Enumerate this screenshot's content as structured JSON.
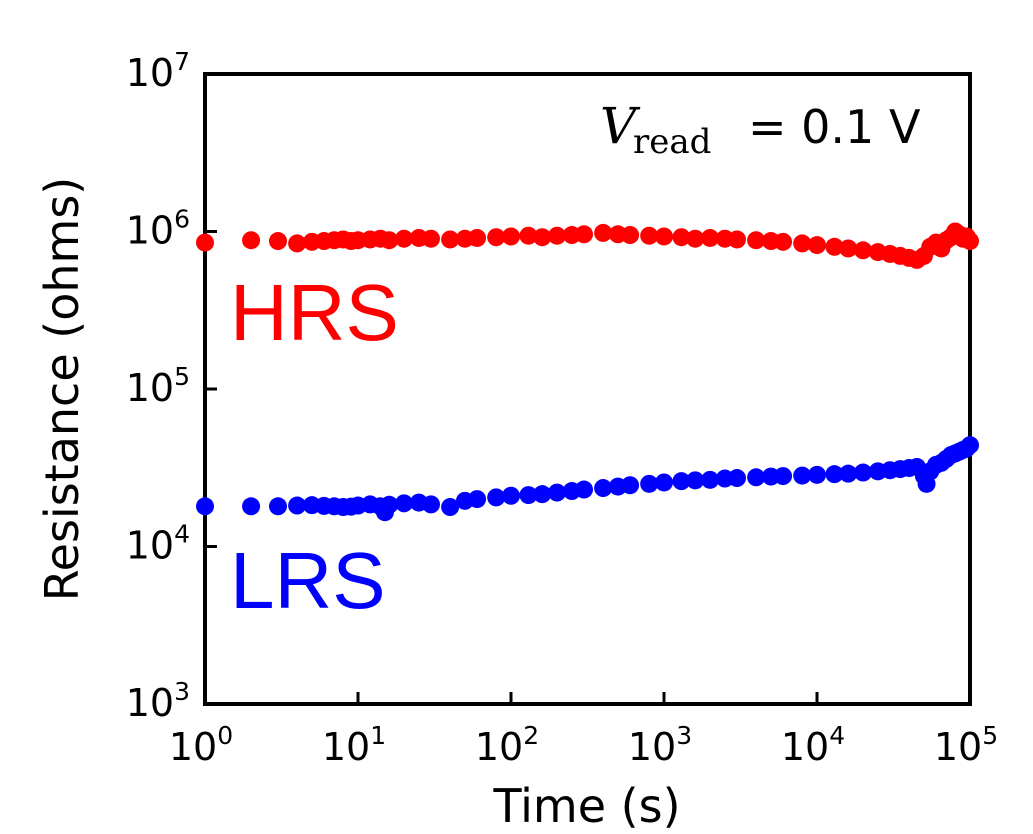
{
  "chart_data": {
    "type": "scatter",
    "xscale": "log",
    "yscale": "log",
    "xlim": [
      1,
      100000
    ],
    "ylim": [
      1000,
      10000000
    ],
    "xlabel": "Time (s)",
    "ylabel": "Resistance (ohms)",
    "x_ticks": [
      {
        "base": "10",
        "exp": "0",
        "value": 1
      },
      {
        "base": "10",
        "exp": "1",
        "value": 10
      },
      {
        "base": "10",
        "exp": "2",
        "value": 100
      },
      {
        "base": "10",
        "exp": "3",
        "value": 1000
      },
      {
        "base": "10",
        "exp": "4",
        "value": 10000
      },
      {
        "base": "10",
        "exp": "5",
        "value": 100000
      }
    ],
    "y_ticks": [
      {
        "base": "10",
        "exp": "3",
        "value": 1000
      },
      {
        "base": "10",
        "exp": "4",
        "value": 10000
      },
      {
        "base": "10",
        "exp": "5",
        "value": 100000
      },
      {
        "base": "10",
        "exp": "6",
        "value": 1000000
      },
      {
        "base": "10",
        "exp": "7",
        "value": 10000000
      }
    ],
    "annotation": {
      "symbol": "V",
      "subscript": "read",
      "text": "= 0.1 V"
    },
    "series": [
      {
        "name": "HRS",
        "color": "#ff0000",
        "points": [
          [
            1,
            850000
          ],
          [
            2,
            880000
          ],
          [
            3,
            870000
          ],
          [
            4,
            840000
          ],
          [
            5,
            860000
          ],
          [
            6,
            870000
          ],
          [
            7,
            880000
          ],
          [
            8,
            890000
          ],
          [
            9,
            870000
          ],
          [
            10,
            880000
          ],
          [
            12,
            890000
          ],
          [
            14,
            900000
          ],
          [
            16,
            880000
          ],
          [
            20,
            900000
          ],
          [
            25,
            910000
          ],
          [
            30,
            900000
          ],
          [
            40,
            890000
          ],
          [
            50,
            900000
          ],
          [
            60,
            910000
          ],
          [
            80,
            920000
          ],
          [
            100,
            930000
          ],
          [
            130,
            940000
          ],
          [
            160,
            920000
          ],
          [
            200,
            940000
          ],
          [
            250,
            950000
          ],
          [
            300,
            960000
          ],
          [
            400,
            980000
          ],
          [
            500,
            960000
          ],
          [
            600,
            950000
          ],
          [
            800,
            940000
          ],
          [
            1000,
            930000
          ],
          [
            1300,
            920000
          ],
          [
            1600,
            900000
          ],
          [
            2000,
            910000
          ],
          [
            2500,
            900000
          ],
          [
            3000,
            890000
          ],
          [
            4000,
            880000
          ],
          [
            5000,
            870000
          ],
          [
            6000,
            860000
          ],
          [
            8000,
            840000
          ],
          [
            10000,
            820000
          ],
          [
            13000,
            800000
          ],
          [
            16000,
            780000
          ],
          [
            20000,
            760000
          ],
          [
            25000,
            740000
          ],
          [
            30000,
            720000
          ],
          [
            35000,
            700000
          ],
          [
            40000,
            680000
          ],
          [
            45000,
            660000
          ],
          [
            50000,
            700000
          ],
          [
            55000,
            800000
          ],
          [
            60000,
            850000
          ],
          [
            65000,
            780000
          ],
          [
            70000,
            880000
          ],
          [
            75000,
            920000
          ],
          [
            80000,
            1000000
          ],
          [
            85000,
            960000
          ],
          [
            90000,
            900000
          ],
          [
            95000,
            930000
          ],
          [
            100000,
            870000
          ]
        ]
      },
      {
        "name": "LRS",
        "color": "#0000ff",
        "points": [
          [
            1,
            18000
          ],
          [
            2,
            18000
          ],
          [
            3,
            18000
          ],
          [
            4,
            18200
          ],
          [
            5,
            18300
          ],
          [
            6,
            18100
          ],
          [
            7,
            18000
          ],
          [
            8,
            17800
          ],
          [
            9,
            17900
          ],
          [
            10,
            18200
          ],
          [
            12,
            18500
          ],
          [
            14,
            18000
          ],
          [
            15,
            16500
          ],
          [
            16,
            18400
          ],
          [
            20,
            18800
          ],
          [
            25,
            19000
          ],
          [
            30,
            18500
          ],
          [
            40,
            17800
          ],
          [
            50,
            19500
          ],
          [
            60,
            20000
          ],
          [
            80,
            20500
          ],
          [
            100,
            21000
          ],
          [
            130,
            21200
          ],
          [
            160,
            21500
          ],
          [
            200,
            22000
          ],
          [
            250,
            22500
          ],
          [
            300,
            23000
          ],
          [
            400,
            23500
          ],
          [
            500,
            24000
          ],
          [
            600,
            24500
          ],
          [
            800,
            25000
          ],
          [
            1000,
            25500
          ],
          [
            1300,
            26000
          ],
          [
            1600,
            26300
          ],
          [
            2000,
            26500
          ],
          [
            2500,
            27000
          ],
          [
            3000,
            27200
          ],
          [
            4000,
            27500
          ],
          [
            5000,
            27800
          ],
          [
            6000,
            28000
          ],
          [
            8000,
            28200
          ],
          [
            10000,
            28500
          ],
          [
            13000,
            28800
          ],
          [
            16000,
            29000
          ],
          [
            20000,
            29500
          ],
          [
            25000,
            30000
          ],
          [
            30000,
            30500
          ],
          [
            35000,
            31000
          ],
          [
            40000,
            31500
          ],
          [
            45000,
            32000
          ],
          [
            50000,
            28000
          ],
          [
            52000,
            25000
          ],
          [
            55000,
            30000
          ],
          [
            60000,
            33000
          ],
          [
            65000,
            34000
          ],
          [
            70000,
            36000
          ],
          [
            75000,
            38000
          ],
          [
            80000,
            39000
          ],
          [
            85000,
            40000
          ],
          [
            90000,
            41000
          ],
          [
            95000,
            42000
          ],
          [
            100000,
            44000
          ]
        ]
      }
    ]
  }
}
